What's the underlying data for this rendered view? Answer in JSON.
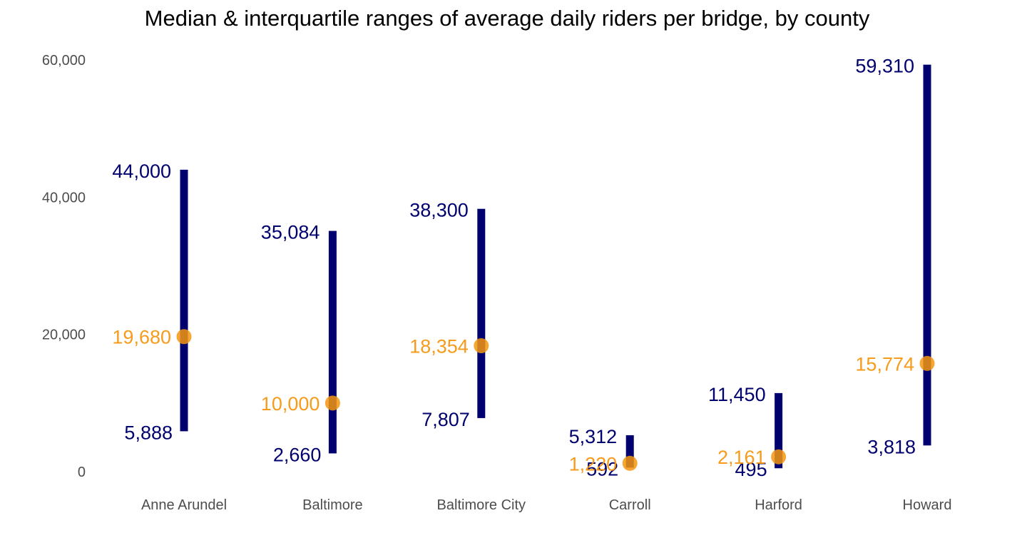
{
  "title": "Median & interquartile ranges of average daily riders per bridge, by county",
  "colors": {
    "range": "#00006e",
    "median": "#f5960f",
    "axis_text": "#4d4d4d"
  },
  "chart_data": {
    "type": "range",
    "title": "Median & interquartile ranges of average daily riders per bridge, by county",
    "xlabel": "",
    "ylabel": "",
    "ylim": [
      0,
      60000
    ],
    "yticks": [
      0,
      20000,
      40000,
      60000
    ],
    "ytick_labels": [
      "0",
      "20,000",
      "40,000",
      "60,000"
    ],
    "grid": false,
    "categories": [
      "Anne Arundel",
      "Baltimore",
      "Baltimore City",
      "Carroll",
      "Harford",
      "Howard"
    ],
    "q1": [
      5888,
      2660,
      7807,
      592,
      495,
      3818
    ],
    "median": [
      19680,
      10000,
      18354,
      1220,
      2161,
      15774
    ],
    "q3": [
      44000,
      35084,
      38300,
      5312,
      11450,
      59310
    ],
    "q1_labels": [
      "5,888",
      "2,660",
      "7,807",
      "592",
      "495",
      "3,818"
    ],
    "median_labels": [
      "19,680",
      "10,000",
      "18,354",
      "1,220",
      "2,161",
      "15,774"
    ],
    "q3_labels": [
      "44,000",
      "35,084",
      "38,300",
      "5,312",
      "11,450",
      "59,310"
    ]
  }
}
